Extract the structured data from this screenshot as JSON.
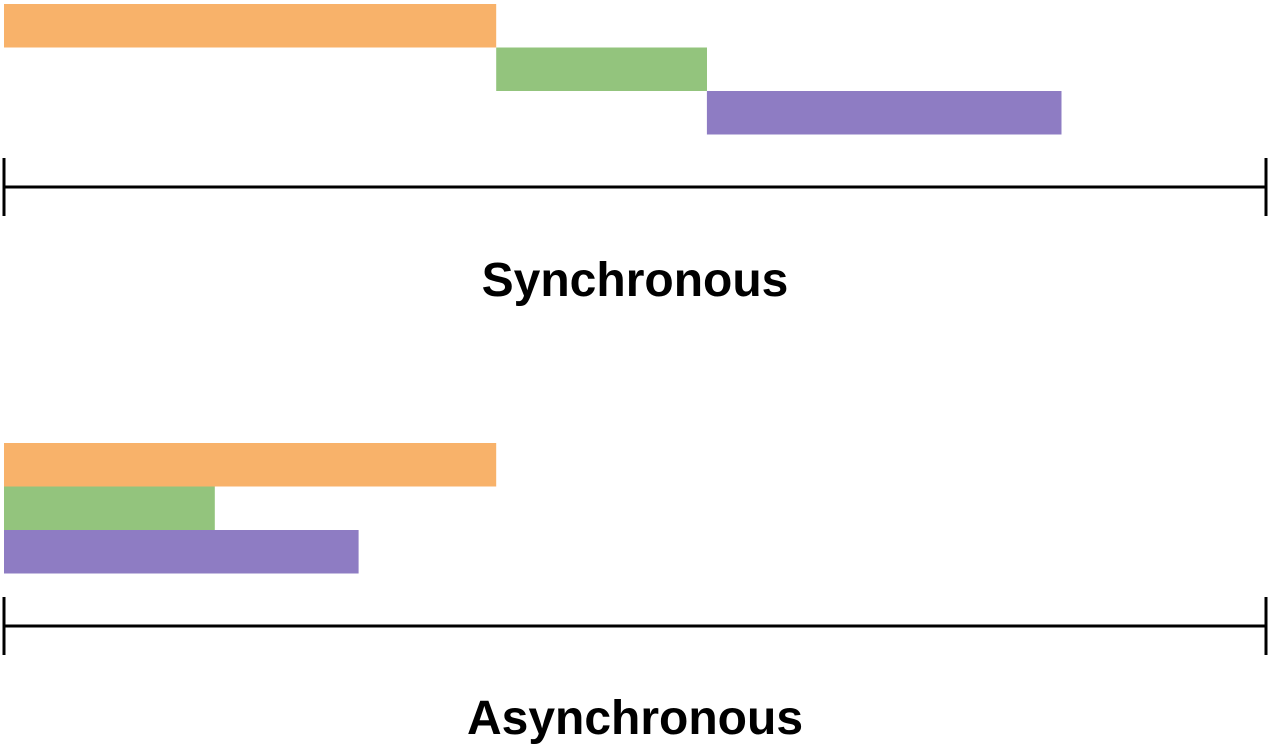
{
  "colors": {
    "orange": "#F8B26A",
    "green": "#93C47D",
    "purple": "#8E7CC3",
    "axis": "#000000"
  },
  "panels": [
    {
      "id": "synchronous",
      "title": "Synchronous",
      "tasks": [
        {
          "color_key": "orange",
          "start": 0.0,
          "end": 0.39
        },
        {
          "color_key": "green",
          "start": 0.39,
          "end": 0.557
        },
        {
          "color_key": "purple",
          "start": 0.557,
          "end": 0.838
        }
      ]
    },
    {
      "id": "asynchronous",
      "title": "Asynchronous",
      "tasks": [
        {
          "color_key": "orange",
          "start": 0.0,
          "end": 0.39
        },
        {
          "color_key": "green",
          "start": 0.0,
          "end": 0.167
        },
        {
          "color_key": "purple",
          "start": 0.0,
          "end": 0.281
        }
      ]
    }
  ]
}
